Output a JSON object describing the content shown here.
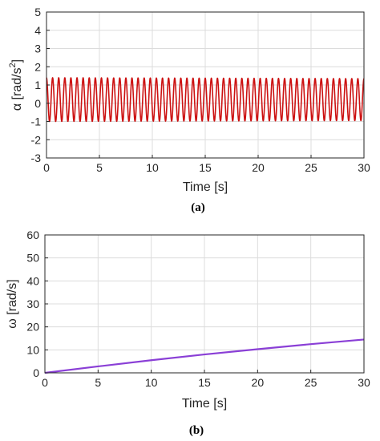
{
  "chart_data": [
    {
      "type": "line",
      "caption": "(a)",
      "xlabel": "Time [s]",
      "ylabel_main": "α [rad/s",
      "ylabel_sup": "2",
      "ylabel_end": "]",
      "xlim": [
        0,
        30
      ],
      "ylim": [
        -3,
        5
      ],
      "xticks": [
        0,
        5,
        10,
        15,
        20,
        25,
        30
      ],
      "yticks": [
        -3,
        -2,
        -1,
        0,
        1,
        2,
        3,
        4,
        5
      ],
      "grid": true,
      "series": [
        {
          "color": "#cc1111",
          "shape": "oscillation",
          "cycles": 52,
          "offset": 0.2,
          "amplitude_start": 1.2,
          "amplitude_end": 1.15,
          "x_start": 0,
          "x_end": 30
        }
      ]
    },
    {
      "type": "line",
      "caption": "(b)",
      "xlabel": "Time [s]",
      "ylabel_main": "ω [rad/s]",
      "xlim": [
        0,
        30
      ],
      "ylim": [
        0,
        60
      ],
      "xticks": [
        0,
        5,
        10,
        15,
        20,
        25,
        30
      ],
      "yticks": [
        0,
        10,
        20,
        30,
        40,
        50,
        60
      ],
      "grid": true,
      "series": [
        {
          "color": "#8a3fd6",
          "x": [
            0,
            5,
            10,
            15,
            20,
            25,
            30
          ],
          "y": [
            0,
            2.8,
            5.5,
            8.0,
            10.3,
            12.5,
            14.5
          ]
        }
      ]
    }
  ]
}
